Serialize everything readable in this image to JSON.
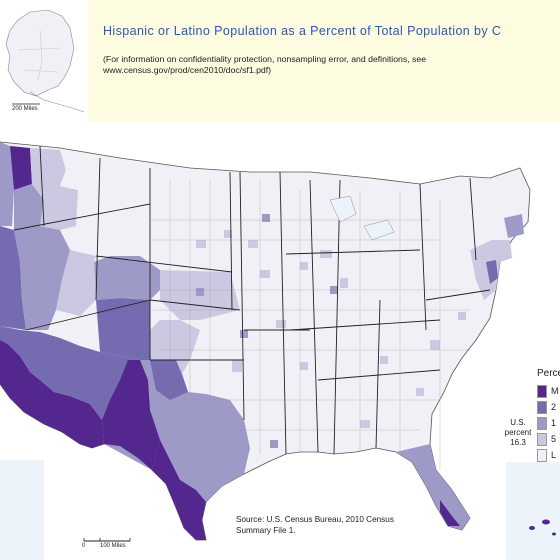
{
  "title": "Hispanic or Latino Population as a Percent of Total Population by C",
  "note_line1": "(For information on confidentiality protection, nonsampling error, and definitions, see",
  "note_line2": "www.census.gov/prod/cen2010/doc/sf1.pdf)",
  "alaska_scale_label": "200 Miles",
  "legend": {
    "title": "Perce",
    "items": [
      {
        "label": "M",
        "color": "#54278f"
      },
      {
        "label": "2",
        "color": "#756bb1"
      },
      {
        "label": "1",
        "color": "#9e9ac8"
      },
      {
        "label": "5",
        "color": "#cbc9e2"
      },
      {
        "label": "L",
        "color": "#f2f0f7"
      }
    ]
  },
  "us_percent": {
    "line1": "U.S.",
    "line2": "percent",
    "value": "16.3"
  },
  "source": {
    "line1": "Source:  U.S. Census Bureau, 2010 Census",
    "line2": "Summary File 1."
  },
  "scale_bar": {
    "zero": "0",
    "label": "100 Miles"
  },
  "colors": {
    "darkest": "#54278f",
    "dark": "#756bb1",
    "medium": "#9e9ac8",
    "light": "#cbc9e2",
    "lightest": "#f2f0f7",
    "background": "#fdfbe0",
    "title": "#2e58a8"
  }
}
